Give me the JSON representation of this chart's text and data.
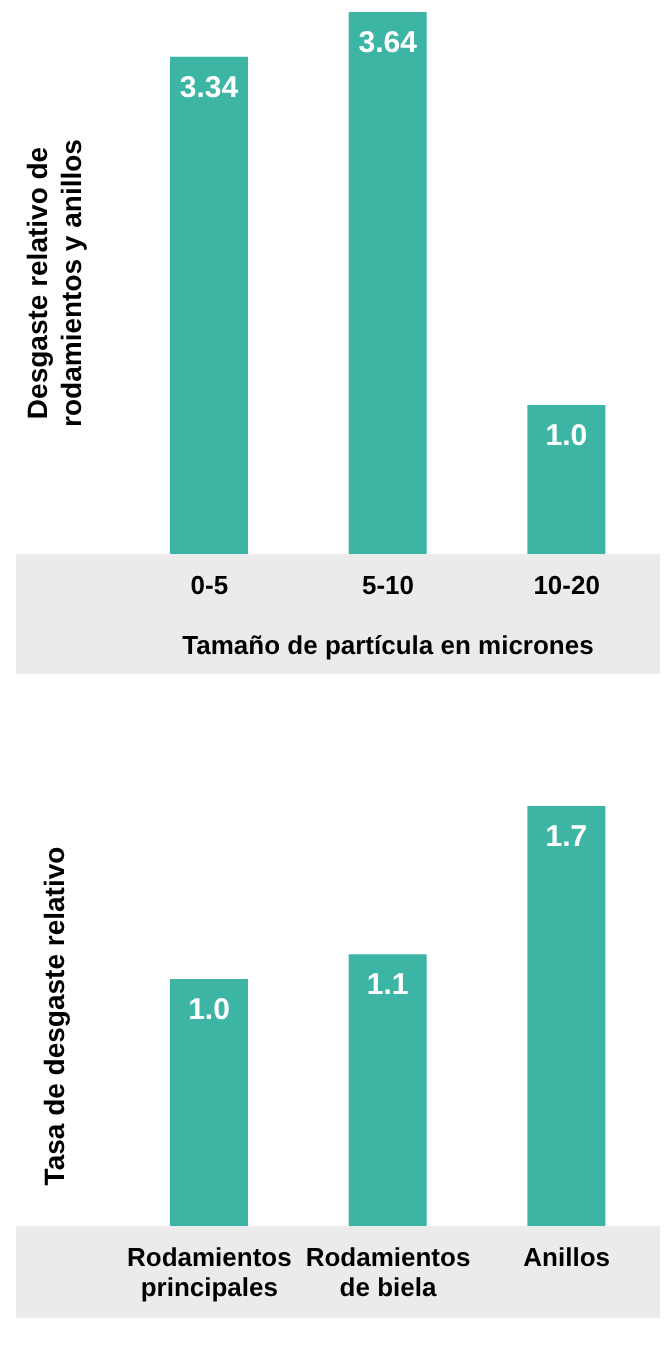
{
  "chart_data": [
    {
      "type": "bar",
      "ylabel": "Desgaste relativo de rodamientos y anillos",
      "xlabel": "Tamaño de partícula en micrones",
      "categories": [
        "0-5",
        "5-10",
        "10-20"
      ],
      "series": [
        {
          "color": "#3db5a4",
          "values": [
            3.34,
            3.64,
            1.0
          ],
          "value_labels": [
            "3.34",
            "3.64",
            "1.0"
          ]
        }
      ],
      "grid": false,
      "legend": false
    },
    {
      "type": "bar",
      "ylabel": "Tasa de desgaste relativo",
      "categories": [
        "Rodamientos principales",
        "Rodamientos de biela",
        "Anillos"
      ],
      "series": [
        {
          "color": "#3db5a4",
          "values": [
            1.0,
            1.1,
            1.7
          ],
          "value_labels": [
            "1.0",
            "1.1",
            "1.7"
          ]
        }
      ],
      "grid": false,
      "legend": false
    }
  ]
}
